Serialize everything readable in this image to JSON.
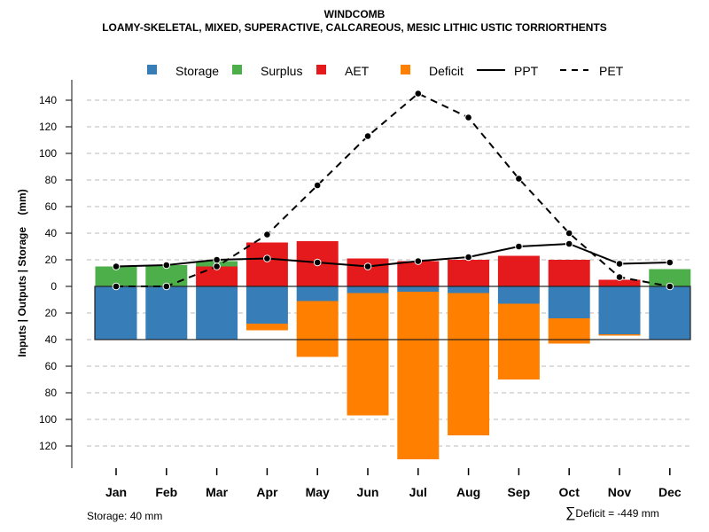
{
  "chart_data": {
    "type": "bar",
    "title": "WINDCOMB",
    "subtitle": "LOAMY-SKELETAL, MIXED, SUPERACTIVE, CALCAREOUS, MESIC LITHIC USTIC TORRIORTHENTS",
    "ylabel": "Inputs | Outputs | Storage    (mm)",
    "xlabel": "",
    "ylim": [
      -135,
      150
    ],
    "yticks": [
      140,
      120,
      100,
      80,
      60,
      40,
      20,
      0,
      20,
      40,
      60,
      80,
      100,
      120
    ],
    "ytick_values": [
      140,
      120,
      100,
      80,
      60,
      40,
      20,
      0,
      -20,
      -40,
      -60,
      -80,
      -100,
      -120
    ],
    "grid": true,
    "legend_position": "top",
    "categories": [
      "Jan",
      "Feb",
      "Mar",
      "Apr",
      "May",
      "Jun",
      "Jul",
      "Aug",
      "Sep",
      "Oct",
      "Nov",
      "Dec"
    ],
    "storage_capacity": 40,
    "legend": [
      {
        "name": "Storage",
        "kind": "box",
        "color": "#377EB8"
      },
      {
        "name": "Surplus",
        "kind": "box",
        "color": "#4DAF4A"
      },
      {
        "name": "AET",
        "kind": "box",
        "color": "#E41A1C"
      },
      {
        "name": "Deficit",
        "kind": "box",
        "color": "#FF7F00"
      },
      {
        "name": "PPT",
        "kind": "solid"
      },
      {
        "name": "PET",
        "kind": "dashed"
      }
    ],
    "series": [
      {
        "name": "Storage",
        "values": [
          40,
          40,
          40,
          28,
          11,
          5,
          4,
          5,
          13,
          24,
          36,
          40
        ]
      },
      {
        "name": "Surplus",
        "values": [
          15,
          16,
          4,
          0,
          0,
          0,
          0,
          0,
          0,
          0,
          0,
          13
        ]
      },
      {
        "name": "AET",
        "values": [
          0,
          0,
          15,
          33,
          34,
          21,
          19,
          20,
          23,
          20,
          5,
          0
        ]
      },
      {
        "name": "Deficit",
        "values": [
          0,
          0,
          0,
          5,
          42,
          92,
          126,
          107,
          57,
          19,
          1,
          0
        ]
      },
      {
        "name": "PPT",
        "values": [
          15,
          16,
          20,
          21,
          18,
          15,
          19,
          22,
          30,
          32,
          17,
          18
        ]
      },
      {
        "name": "PET",
        "values": [
          0,
          0,
          15,
          39,
          76,
          113,
          145,
          127,
          81,
          40,
          7,
          0
        ]
      }
    ]
  },
  "footer": {
    "storage_note": "Storage: 40 mm",
    "deficit_symbol": "∑",
    "deficit_note": "Deficit = -449 mm"
  }
}
